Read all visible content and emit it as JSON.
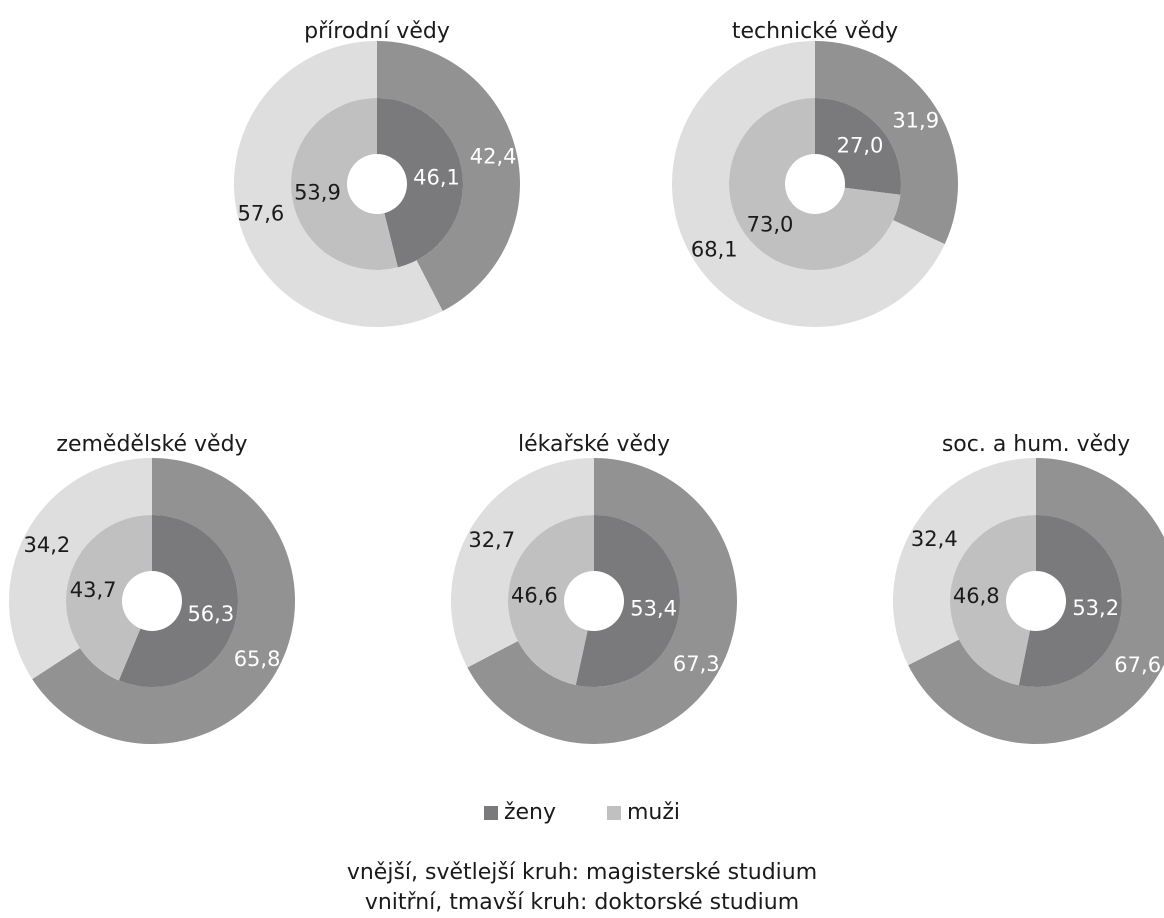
{
  "chart_data": [
    {
      "type": "pie",
      "title": "přírodní vědy",
      "categories": [
        "ženy",
        "muži"
      ],
      "series": [
        {
          "ring": "outer",
          "values": [
            42.4,
            57.6
          ],
          "labels": [
            "42,4",
            "57,6"
          ]
        },
        {
          "ring": "inner",
          "values": [
            46.1,
            53.9
          ],
          "labels": [
            "46,1",
            "53,9"
          ]
        }
      ]
    },
    {
      "type": "pie",
      "title": "technické vědy",
      "categories": [
        "ženy",
        "muži"
      ],
      "series": [
        {
          "ring": "outer",
          "values": [
            31.9,
            68.1
          ],
          "labels": [
            "31,9",
            "68,1"
          ]
        },
        {
          "ring": "inner",
          "values": [
            27.0,
            73.0
          ],
          "labels": [
            "27,0",
            "73,0"
          ]
        }
      ]
    },
    {
      "type": "pie",
      "title": "zemědělské vědy",
      "categories": [
        "ženy",
        "muži"
      ],
      "series": [
        {
          "ring": "outer",
          "values": [
            65.8,
            34.2
          ],
          "labels": [
            "65,8",
            "34,2"
          ]
        },
        {
          "ring": "inner",
          "values": [
            56.3,
            43.7
          ],
          "labels": [
            "56,3",
            "43,7"
          ]
        }
      ]
    },
    {
      "type": "pie",
      "title": "lékařské vědy",
      "categories": [
        "ženy",
        "muži"
      ],
      "series": [
        {
          "ring": "outer",
          "values": [
            67.3,
            32.7
          ],
          "labels": [
            "67,3",
            "32,7"
          ]
        },
        {
          "ring": "inner",
          "values": [
            53.4,
            46.6
          ],
          "labels": [
            "53,4",
            "46,6"
          ]
        }
      ]
    },
    {
      "type": "pie",
      "title": "soc. a hum. vědy",
      "categories": [
        "ženy",
        "muži"
      ],
      "series": [
        {
          "ring": "outer",
          "values": [
            67.6,
            32.4
          ],
          "labels": [
            "67,6",
            "32,4"
          ]
        },
        {
          "ring": "inner",
          "values": [
            53.2,
            46.8
          ],
          "labels": [
            "53,2",
            "46,8"
          ]
        }
      ]
    }
  ],
  "legend": {
    "zeny": "ženy",
    "muzi": "muži"
  },
  "notes": {
    "outer": "vnější, světlejší kruh: magisterské studium",
    "inner": "vnitřní, tmavší kruh: doktorské studium"
  },
  "colors": {
    "zeny_outer": "#929292",
    "muzi_outer": "#dedede",
    "zeny_inner": "#7a7a7c",
    "muzi_inner": "#c0c0c0",
    "legend_zeny": "#7a7a7c",
    "legend_muzi": "#c0c0c0"
  }
}
